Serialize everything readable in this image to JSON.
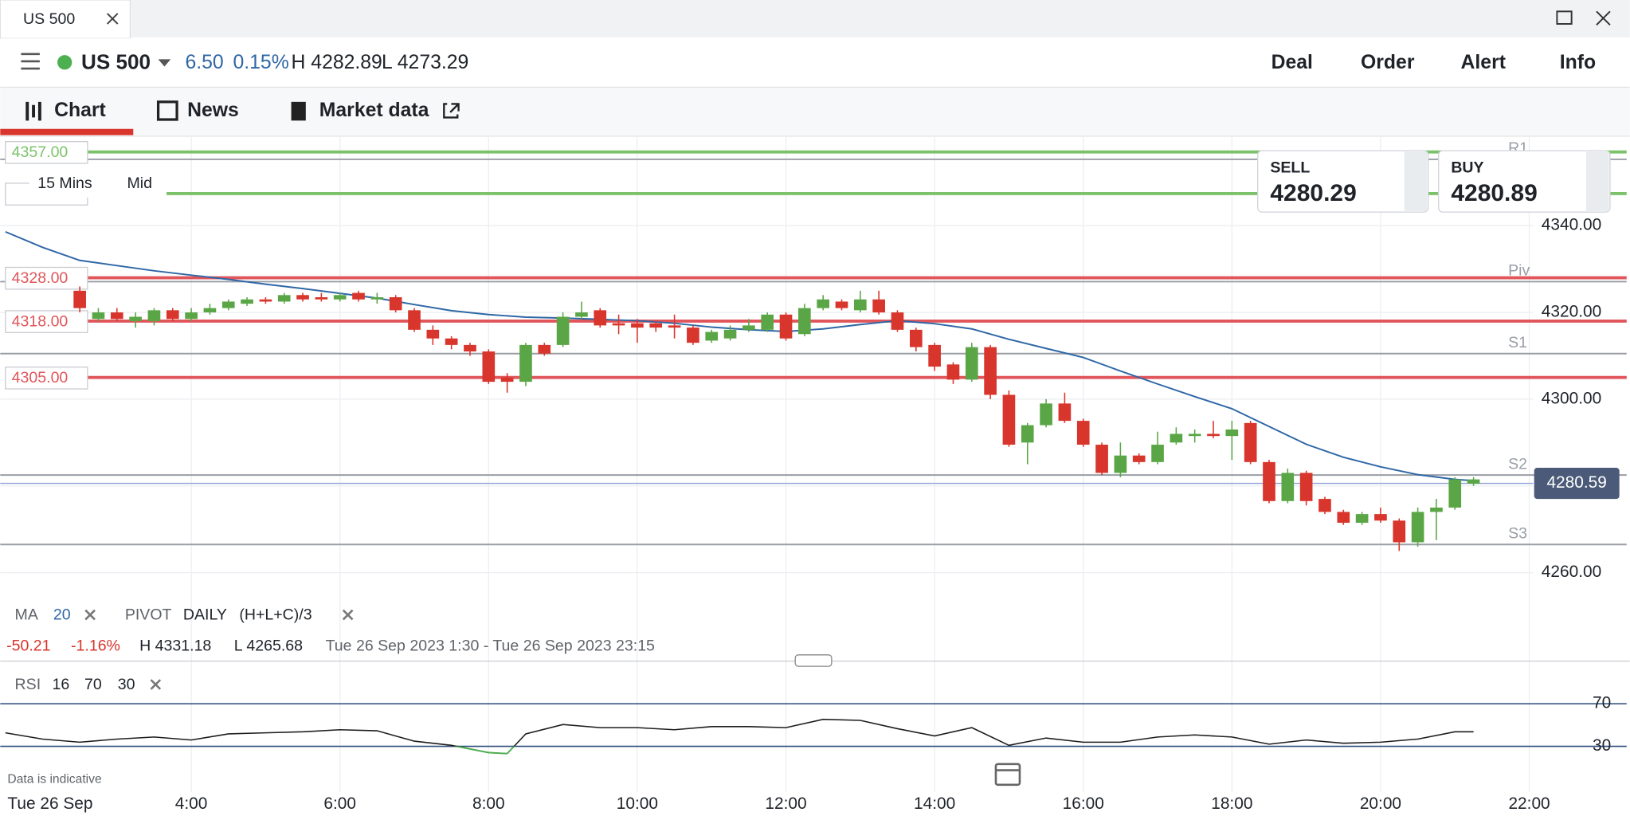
{
  "window": {
    "tab": "US 500"
  },
  "header": {
    "market": "US 500",
    "change": "6.50",
    "change_pct": "0.15%",
    "high": "H 4282.89",
    "low": "L 4273.29",
    "actions": [
      "Deal",
      "Order",
      "Alert",
      "Info"
    ]
  },
  "tabs": [
    "Chart",
    "News",
    "Market data"
  ],
  "quote": {
    "sell_label": "SELL",
    "sell": "4280.29",
    "buy_label": "BUY",
    "buy": "4280.89"
  },
  "indicators": {
    "ma_label": "MA",
    "pivot_label": "PIVOT",
    "pivot_period": "DAILY",
    "pivot_formula": "(H+L+C)/3"
  },
  "stats": {
    "change": "-50.21",
    "change_pct": "-1.16%",
    "high": "H 4331.18",
    "low": "L 4265.68",
    "range": "Tue 26 Sep 2023 1:30 - Tue 26 Sep 2023 23:15"
  },
  "footer": {
    "note": "Data is indicative"
  },
  "chart_data": {
    "type": "candlestick",
    "interval": "15 Mins",
    "price_mode": "Mid",
    "up_color": "#5aa646",
    "down_color": "#d8352c",
    "x": [
      2.5,
      2.75,
      3,
      3.25,
      3.5,
      3.75,
      4,
      4.25,
      4.5,
      4.75,
      5,
      5.25,
      5.5,
      5.75,
      6,
      6.25,
      6.5,
      6.75,
      7,
      7.25,
      7.5,
      7.75,
      8,
      8.25,
      8.5,
      8.75,
      9,
      9.25,
      9.5,
      9.75,
      10,
      10.25,
      10.5,
      10.75,
      11,
      11.25,
      11.5,
      11.75,
      12,
      12.25,
      12.5,
      12.75,
      13,
      13.25,
      13.5,
      13.75,
      14,
      14.25,
      14.5,
      14.75,
      15,
      15.25,
      15.5,
      15.75,
      16,
      16.25,
      16.5,
      16.75,
      17,
      17.25,
      17.5,
      17.75,
      18,
      18.25,
      18.5,
      18.75,
      19,
      19.25,
      19.5,
      19.75,
      20,
      20.25,
      20.5,
      20.75,
      21,
      21.25
    ],
    "open": [
      4325,
      4318.5,
      4320,
      4318,
      4318,
      4320.5,
      4318.5,
      4320,
      4321,
      4322,
      4323,
      4322.5,
      4324,
      4323.5,
      4323,
      4324.5,
      4323,
      4323.5,
      4320.5,
      4316,
      4314,
      4312.5,
      4311,
      4305,
      4304,
      4312.5,
      4312.5,
      4319,
      4320.5,
      4317.5,
      4317.5,
      4317.5,
      4317,
      4316.5,
      4313.5,
      4314,
      4316,
      4316,
      4319.5,
      4315,
      4321,
      4322.5,
      4320.5,
      4323,
      4320,
      4316,
      4312.5,
      4308,
      4304.5,
      4312,
      4301,
      4290,
      4294,
      4299,
      4295,
      4289.5,
      4283,
      4287,
      4285.5,
      4290,
      4291.5,
      4292,
      4291.5,
      4294.5,
      4285.5,
      4276.5,
      4283,
      4277,
      4274,
      4271.5,
      4273.5,
      4272,
      4267,
      4274,
      4275,
      4280.5
    ],
    "high": [
      4326,
      4321,
      4321,
      4320,
      4321,
      4321,
      4321,
      4322,
      4323,
      4323.5,
      4323.5,
      4324.5,
      4324.5,
      4324.5,
      4324.5,
      4325,
      4324.5,
      4324,
      4321,
      4317,
      4314.5,
      4313,
      4311.5,
      4306,
      4313,
      4313,
      4320,
      4322.5,
      4321,
      4319.5,
      4318.5,
      4318,
      4319.5,
      4317,
      4316,
      4317,
      4318.5,
      4320,
      4320,
      4322,
      4324,
      4323,
      4325,
      4325,
      4320.5,
      4316.5,
      4313,
      4308.5,
      4313,
      4312.5,
      4302,
      4294.5,
      4300,
      4301.5,
      4295.5,
      4290,
      4290,
      4287.5,
      4292.5,
      4293.5,
      4293,
      4295,
      4295,
      4295,
      4286,
      4284,
      4283.5,
      4277.5,
      4274.5,
      4274,
      4275,
      4272.5,
      4275,
      4277,
      4282,
      4282
    ],
    "low": [
      4320,
      4318,
      4318,
      4316.5,
      4317,
      4318,
      4318,
      4319.5,
      4320.5,
      4321.5,
      4322,
      4322,
      4322.5,
      4322.5,
      4322.5,
      4322.5,
      4322,
      4320,
      4315.5,
      4312.5,
      4311.5,
      4310,
      4303.5,
      4301.5,
      4303,
      4310,
      4312,
      4318.5,
      4316.5,
      4315,
      4313,
      4315.5,
      4314,
      4312.5,
      4313,
      4313.5,
      4315.5,
      4315.5,
      4313.5,
      4314.5,
      4320.5,
      4320.5,
      4320,
      4319.5,
      4315.5,
      4311,
      4306.5,
      4303.5,
      4304,
      4300,
      4289,
      4285,
      4293.5,
      4294.5,
      4289,
      4282.5,
      4282,
      4285,
      4285,
      4289.5,
      4290,
      4291,
      4286,
      4285,
      4276,
      4276,
      4275.5,
      4273.5,
      4271,
      4271,
      4271.5,
      4265,
      4266,
      4267.5,
      4274.5,
      4280
    ],
    "close": [
      4321,
      4320,
      4318.5,
      4319,
      4320.5,
      4318.5,
      4320,
      4321,
      4322.5,
      4323,
      4322.5,
      4324,
      4323,
      4323,
      4324,
      4323,
      4323.5,
      4320.5,
      4316,
      4314,
      4312.5,
      4311,
      4304,
      4304,
      4312.5,
      4310.5,
      4319,
      4320,
      4317,
      4317,
      4316.5,
      4316.5,
      4316.5,
      4313,
      4315.5,
      4316,
      4317,
      4319.5,
      4314,
      4321,
      4323,
      4321,
      4323,
      4320,
      4316,
      4312,
      4307.5,
      4304.5,
      4312,
      4301,
      4289.5,
      4294,
      4299,
      4295,
      4289.5,
      4283,
      4287,
      4285.5,
      4289.5,
      4292,
      4292,
      4291.5,
      4293,
      4285.5,
      4276.5,
      4283,
      4276.5,
      4274,
      4271.5,
      4273.5,
      4272,
      4267,
      4274,
      4275,
      4281.5,
      4281.5
    ],
    "xlim": [
      1.43,
      23.31
    ],
    "xticks": [
      {
        "value": 4,
        "label": "4:00"
      },
      {
        "value": 6,
        "label": "6:00"
      },
      {
        "value": 8,
        "label": "8:00"
      },
      {
        "value": 10,
        "label": "10:00"
      },
      {
        "value": 12,
        "label": "12:00"
      },
      {
        "value": 14,
        "label": "14:00"
      },
      {
        "value": 16,
        "label": "16:00"
      },
      {
        "value": 18,
        "label": "18:00"
      },
      {
        "value": 20,
        "label": "20:00"
      },
      {
        "value": 22,
        "label": "22:00"
      }
    ],
    "x_start_label": "Tue 26 Sep",
    "ylim": [
      4253.5,
      4360.4
    ],
    "yticks": [
      {
        "value": 4260,
        "label": "4260.00"
      },
      {
        "value": 4280,
        "label": "4280.00"
      },
      {
        "value": 4300,
        "label": "4300.00"
      },
      {
        "value": 4320,
        "label": "4320.00"
      },
      {
        "value": 4340,
        "label": "4340.00"
      }
    ],
    "grid": true,
    "levels": [
      {
        "value": 4357,
        "label": "4357.00",
        "color": "#7cc26a"
      },
      {
        "value": 4347.4,
        "color": "#7cc26a"
      },
      {
        "value": 4328,
        "label": "4328.00",
        "color": "#e0565b"
      },
      {
        "value": 4318,
        "label": "4318.00",
        "color": "#e0565b"
      },
      {
        "value": 4305,
        "label": "4305.00",
        "color": "#e0565b"
      }
    ],
    "pivots": [
      {
        "name": "R1",
        "value": 4355.3
      },
      {
        "name": "Piv",
        "value": 4327.1
      },
      {
        "name": "S1",
        "value": 4310.5
      },
      {
        "name": "S2",
        "value": 4282.5
      },
      {
        "name": "S3",
        "value": 4266.5
      }
    ],
    "pivot_color": "#9a9ea5",
    "last_price": {
      "value": 4280.59,
      "label": "4280.59"
    },
    "ma": {
      "period": 20,
      "color": "#2f67a6",
      "x": [
        1.5,
        2,
        2.5,
        3,
        3.5,
        4,
        4.5,
        5,
        5.5,
        6,
        6.5,
        7,
        7.5,
        8,
        8.5,
        9,
        9.5,
        10,
        10.5,
        11,
        11.5,
        12,
        12.5,
        13,
        13.5,
        14,
        14.5,
        15,
        15.5,
        16,
        16.5,
        17,
        17.5,
        18,
        18.5,
        19,
        19.5,
        20,
        20.5,
        21,
        21.25
      ],
      "values": [
        4338.6,
        4335,
        4332,
        4330.8,
        4329.6,
        4328.6,
        4327.6,
        4326.5,
        4325.5,
        4324.4,
        4323.3,
        4321.8,
        4320.4,
        4319.5,
        4318.9,
        4318.7,
        4318.4,
        4318.1,
        4317.5,
        4316.6,
        4316,
        4315.6,
        4316.2,
        4317.2,
        4318.1,
        4317.4,
        4316.2,
        4313.8,
        4311.7,
        4309.6,
        4306.5,
        4303.5,
        4300.6,
        4297.8,
        4293.7,
        4289.6,
        4286.6,
        4284.4,
        4282.6,
        4281.5,
        4281.2
      ]
    },
    "rsi": {
      "type": "line",
      "name": "RSI",
      "period": 16,
      "upper": 70,
      "lower": 30,
      "color": "#1d1d1f",
      "below_color": "#4caf50",
      "band_color": "#2b4a7a",
      "ylim": [
        -11,
        86.6
      ],
      "yticks": [
        30,
        70
      ],
      "x": [
        1.5,
        2,
        2.5,
        3,
        3.5,
        4,
        4.5,
        5,
        5.5,
        6,
        6.5,
        7,
        7.5,
        8,
        8.25,
        8.5,
        9,
        9.5,
        10,
        10.5,
        11,
        11.5,
        12,
        12.5,
        13,
        13.5,
        14,
        14.5,
        15,
        15.5,
        16,
        16.5,
        17,
        17.5,
        18,
        18.5,
        19,
        19.5,
        20,
        20.5,
        21,
        21.25
      ],
      "values": [
        42.7,
        36.8,
        33.9,
        36.8,
        38.8,
        35.9,
        41.7,
        42.7,
        43.7,
        45.6,
        44.6,
        34.9,
        31,
        24.1,
        23.2,
        41.7,
        50.5,
        47.6,
        47.6,
        45.6,
        48.5,
        48.5,
        47.6,
        55.4,
        54.4,
        46.6,
        39.8,
        47.6,
        31,
        37.8,
        33.9,
        33.9,
        38.8,
        40.7,
        38.8,
        32,
        35.9,
        32.9,
        33.9,
        36.8,
        43.7,
        43.7
      ]
    }
  }
}
